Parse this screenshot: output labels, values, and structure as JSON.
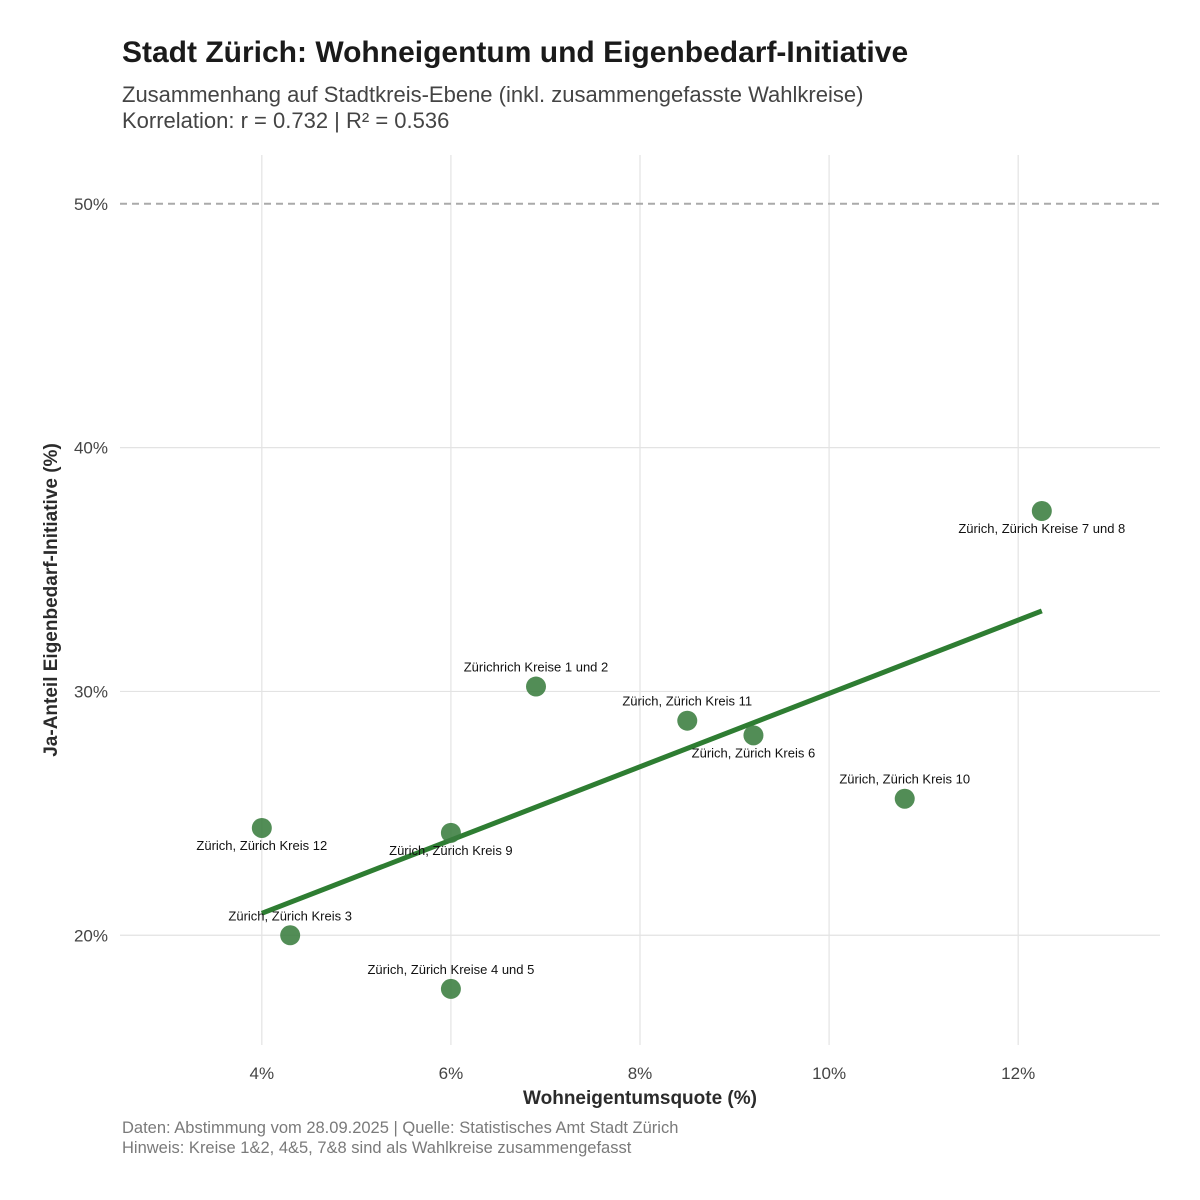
{
  "title": "Stadt Zürich: Wohneigentum und Eigenbedarf-Initiative",
  "subtitle_line1": "Zusammenhang auf Stadtkreis-Ebene (inkl. zusammengefasste Wahlkreise)",
  "subtitle_line2": "Korrelation: r = 0.732 | R² = 0.536",
  "caption_line1": "Daten: Abstimmung vom 28.09.2025 | Quelle: Statistisches Amt Stadt Zürich",
  "caption_line2": "Hinweis: Kreise 1&2, 4&5, 7&8 sind als Wahlkreise zusammengefasst",
  "colors": {
    "points": "#3a7d3f",
    "trend": "#2e7d32",
    "grid": "#e3e3e3",
    "reference": "#aaaaaa"
  },
  "chart_data": {
    "type": "scatter",
    "xlabel": "Wohneigentumsquote (%)",
    "ylabel": "Ja-Anteil Eigenbedarf-Initiative (%)",
    "x_ticks": [
      4,
      6,
      8,
      10,
      12
    ],
    "x_tick_labels": [
      "4%",
      "6%",
      "8%",
      "10%",
      "12%"
    ],
    "y_ticks": [
      20,
      30,
      40,
      50
    ],
    "y_tick_labels": [
      "20%",
      "30%",
      "40%",
      "50%"
    ],
    "xlim": [
      2.5,
      13.5
    ],
    "ylim": [
      15.5,
      52
    ],
    "grid": true,
    "reference_line": {
      "y": 50,
      "style": "dashed"
    },
    "trend_line": {
      "x": [
        4.0,
        12.25
      ],
      "y": [
        20.9,
        33.3
      ]
    },
    "points": [
      {
        "label": "Zürich, Zürich Kreise 7 und 8",
        "x": 12.25,
        "y": 37.4,
        "label_pos": "below"
      },
      {
        "label": "Zürichrich Kreise 1 und 2",
        "x": 6.9,
        "y": 30.2,
        "label_pos": "above"
      },
      {
        "label": "Zürich, Zürich Kreis 11",
        "x": 8.5,
        "y": 28.8,
        "label_pos": "above"
      },
      {
        "label": "Zürich, Zürich Kreis 6",
        "x": 9.2,
        "y": 28.2,
        "label_pos": "below"
      },
      {
        "label": "Zürich, Zürich Kreis 10",
        "x": 10.8,
        "y": 25.6,
        "label_pos": "above"
      },
      {
        "label": "Zürich, Zürich Kreis 12",
        "x": 4.0,
        "y": 24.4,
        "label_pos": "below"
      },
      {
        "label": "Zürich, Zürich Kreis 9",
        "x": 6.0,
        "y": 24.2,
        "label_pos": "below"
      },
      {
        "label": "Zürich, Zürich Kreis 3",
        "x": 4.3,
        "y": 20.0,
        "label_pos": "above"
      },
      {
        "label": "Zürich, Zürich Kreise 4 und 5",
        "x": 6.0,
        "y": 17.8,
        "label_pos": "above"
      }
    ]
  }
}
